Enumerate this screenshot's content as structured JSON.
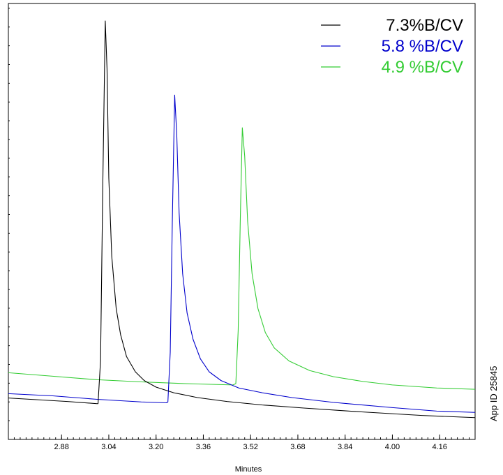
{
  "chart_data": {
    "type": "line",
    "title": "",
    "xlabel": "Minutes",
    "ylabel": "",
    "xlim": [
      2.7,
      4.28
    ],
    "ylim": [
      0,
      100
    ],
    "grid": false,
    "legend_position": "top-right",
    "x_ticks": [
      "2.88",
      "3.04",
      "3.20",
      "3.36",
      "3.52",
      "3.68",
      "3.84",
      "4.00",
      "4.16"
    ],
    "side_note": "App ID 25845",
    "series": [
      {
        "name": "7.3%B/CV",
        "color": "#000000",
        "points": [
          [
            2.7,
            9.5
          ],
          [
            2.9,
            8.7
          ],
          [
            3.0,
            8.2
          ],
          [
            3.0035,
            8.2
          ],
          [
            3.012,
            18
          ],
          [
            3.02,
            60
          ],
          [
            3.028,
            96
          ],
          [
            3.034,
            85
          ],
          [
            3.04,
            60
          ],
          [
            3.05,
            42
          ],
          [
            3.065,
            30
          ],
          [
            3.08,
            24
          ],
          [
            3.1,
            19
          ],
          [
            3.13,
            15.5
          ],
          [
            3.16,
            13.5
          ],
          [
            3.2,
            12
          ],
          [
            3.26,
            10.7
          ],
          [
            3.34,
            9.6
          ],
          [
            3.44,
            8.7
          ],
          [
            3.56,
            7.9
          ],
          [
            3.7,
            7.2
          ],
          [
            3.9,
            6.3
          ],
          [
            4.1,
            5.5
          ],
          [
            4.28,
            5
          ]
        ]
      },
      {
        "name": "5.8 %B/CV",
        "color": "#0000cc",
        "points": [
          [
            2.7,
            10.5
          ],
          [
            2.85,
            10
          ],
          [
            3.0,
            9.2
          ],
          [
            3.15,
            8.6
          ],
          [
            3.235,
            8.4
          ],
          [
            3.24,
            8.6
          ],
          [
            3.248,
            20
          ],
          [
            3.255,
            50
          ],
          [
            3.263,
            79
          ],
          [
            3.27,
            70
          ],
          [
            3.278,
            52
          ],
          [
            3.29,
            38
          ],
          [
            3.305,
            29
          ],
          [
            3.325,
            23
          ],
          [
            3.35,
            18.5
          ],
          [
            3.38,
            15.5
          ],
          [
            3.42,
            13.5
          ],
          [
            3.48,
            11.8
          ],
          [
            3.56,
            10.7
          ],
          [
            3.66,
            9.6
          ],
          [
            3.8,
            8.5
          ],
          [
            4.0,
            7.3
          ],
          [
            4.15,
            6.5
          ],
          [
            4.28,
            6.2
          ]
        ]
      },
      {
        "name": "4.9 %B/CV",
        "color": "#33cc33",
        "points": [
          [
            2.7,
            15.3
          ],
          [
            2.85,
            14.5
          ],
          [
            3.0,
            13.7
          ],
          [
            3.15,
            13.2
          ],
          [
            3.3,
            12.8
          ],
          [
            3.46,
            12.5
          ],
          [
            3.47,
            12.8
          ],
          [
            3.478,
            25
          ],
          [
            3.485,
            50
          ],
          [
            3.492,
            71.5
          ],
          [
            3.5,
            65
          ],
          [
            3.51,
            50
          ],
          [
            3.525,
            38
          ],
          [
            3.545,
            30
          ],
          [
            3.57,
            24.5
          ],
          [
            3.6,
            21
          ],
          [
            3.65,
            18
          ],
          [
            3.72,
            15.8
          ],
          [
            3.8,
            14.4
          ],
          [
            3.9,
            13.3
          ],
          [
            4.0,
            12.5
          ],
          [
            4.15,
            11.8
          ],
          [
            4.28,
            11.5
          ]
        ]
      }
    ]
  }
}
